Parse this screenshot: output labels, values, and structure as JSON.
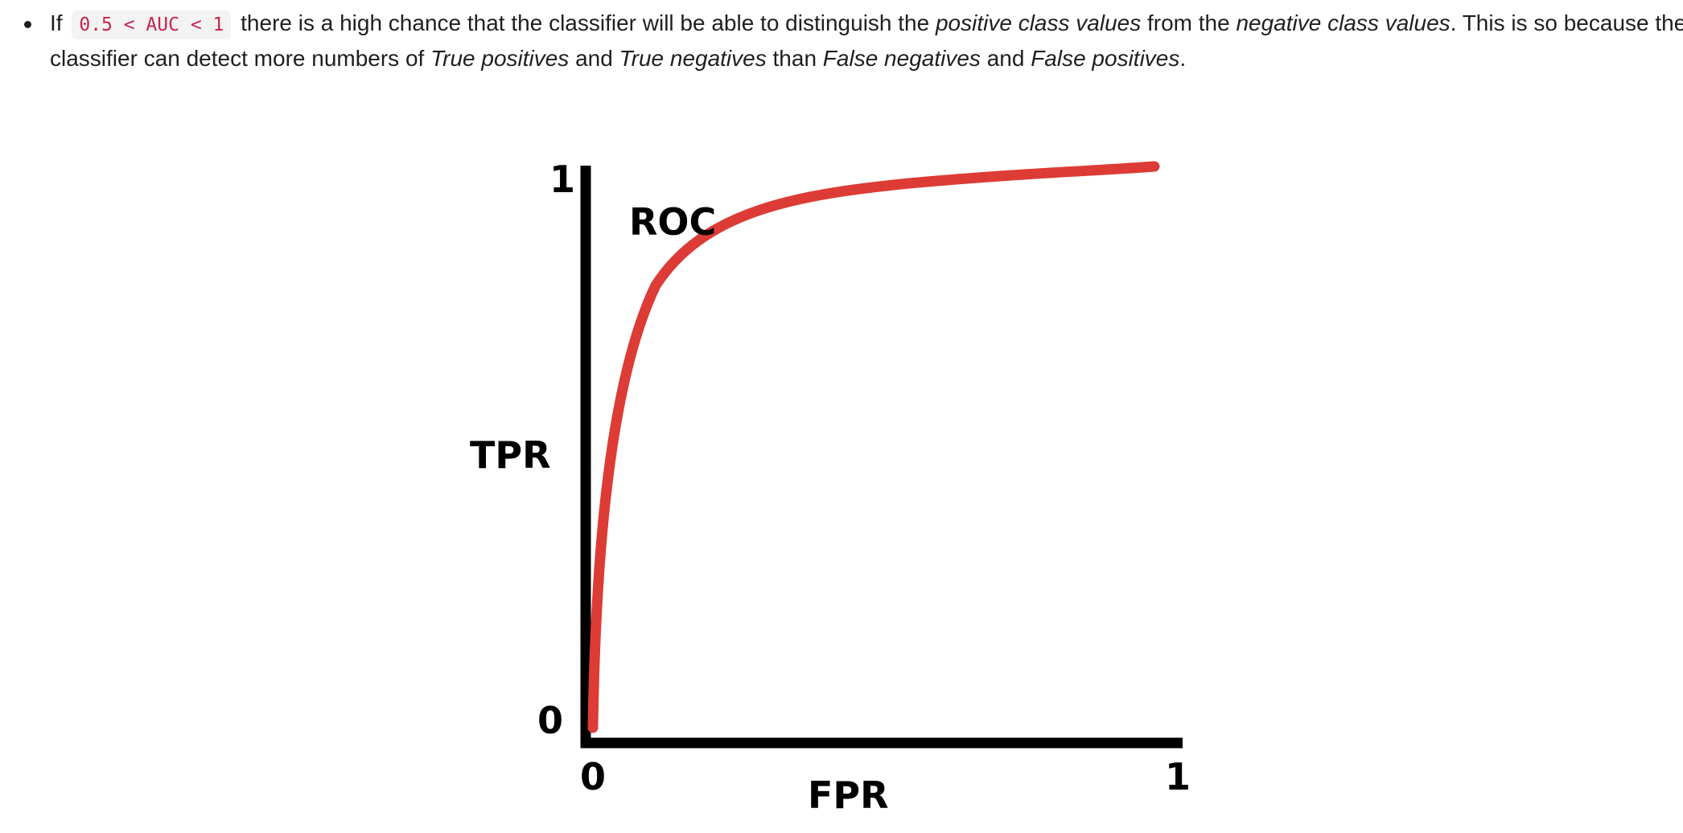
{
  "paragraph": {
    "if_word": "If",
    "code": "0.5 < AUC < 1",
    "line1_text1": "there is a high chance that the classifier will be able to distinguish the",
    "line1_em1": "positive class values",
    "line1_text2": "from the",
    "line1_em2": "negative class values",
    "line1_text3": ". This is so because the",
    "line2_text1": "classifier can detect more numbers of",
    "line2_em1": "True positives",
    "line2_text2": "and",
    "line2_em2": "True negatives",
    "line2_text3": "than",
    "line2_em3": "False negatives",
    "line2_text4": "and",
    "line2_em4": "False positives",
    "line2_text5": "."
  },
  "figure": {
    "curve_label": "ROC",
    "ylabel": "TPR",
    "xlabel": "FPR",
    "y_tick_top": "1",
    "y_tick_bottom": "0",
    "x_tick_left": "0",
    "x_tick_right": "1",
    "curve_color": "#dd3b35",
    "axis_color": "#000000"
  }
}
